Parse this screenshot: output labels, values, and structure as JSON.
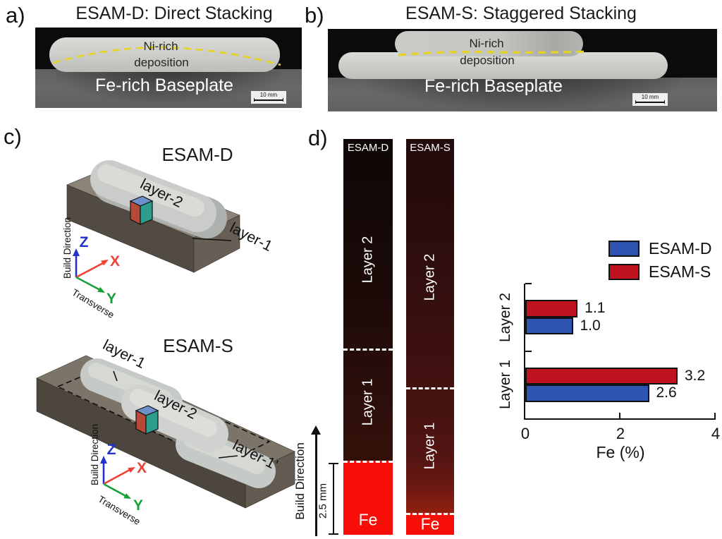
{
  "figure": {
    "panel_a": {
      "letter": "a)",
      "title": "ESAM-D: Direct Stacking",
      "ni_rich": "Ni-rich",
      "deposition": "deposition",
      "baseplate": "Fe-rich Baseplate",
      "scale": "10 mm"
    },
    "panel_b": {
      "letter": "b)",
      "title": "ESAM-S: Staggered Stacking",
      "ni_rich": "Ni-rich",
      "deposition": "deposition",
      "baseplate": "Fe-rich Baseplate",
      "scale": "10 mm"
    },
    "panel_c": {
      "letter": "c)",
      "model_d": {
        "title": "ESAM-D",
        "layer2": "layer-2",
        "layer1": "layer-1"
      },
      "model_s": {
        "title": "ESAM-S",
        "layer1": "layer-1",
        "layer2": "layer-2",
        "layer1p": "layer-1'"
      },
      "axes": {
        "z": "Z",
        "x": "X",
        "y": "Y",
        "build": "Build Direction",
        "transverse": "Transverse"
      }
    },
    "panel_d": {
      "letter": "d)",
      "strip_d": {
        "title": "ESAM-D",
        "layer2": "Layer 2",
        "layer1": "Layer 1",
        "fe": "Fe"
      },
      "strip_s": {
        "title": "ESAM-S",
        "layer2": "Layer 2",
        "layer1": "Layer 1",
        "fe": "Fe"
      },
      "build_direction": "Build Direction",
      "scale_label": "2.5 mm"
    }
  },
  "chart_data": {
    "type": "bar",
    "orientation": "horizontal",
    "categories": [
      "Layer 2",
      "Layer 1"
    ],
    "series": [
      {
        "name": "ESAM-D",
        "color": "#2c54b0",
        "values": [
          1.0,
          2.6
        ]
      },
      {
        "name": "ESAM-S",
        "color": "#bf1322",
        "values": [
          1.1,
          3.2
        ]
      }
    ],
    "bar_order_top_to_bottom": [
      "ESAM-S",
      "ESAM-D"
    ],
    "xlabel": "Fe (%)",
    "xlim": [
      0,
      4
    ],
    "xticks": [
      0,
      2,
      4
    ],
    "value_labels": true,
    "legend_position": "top-right",
    "grid": false
  },
  "colors": {
    "fe_red": "#f90d08",
    "interface_dashed_yellow": "#e6d31d",
    "axis_z_blue": "#2233cc",
    "axis_x_red": "#ee4236",
    "axis_y_green": "#16a23b"
  }
}
